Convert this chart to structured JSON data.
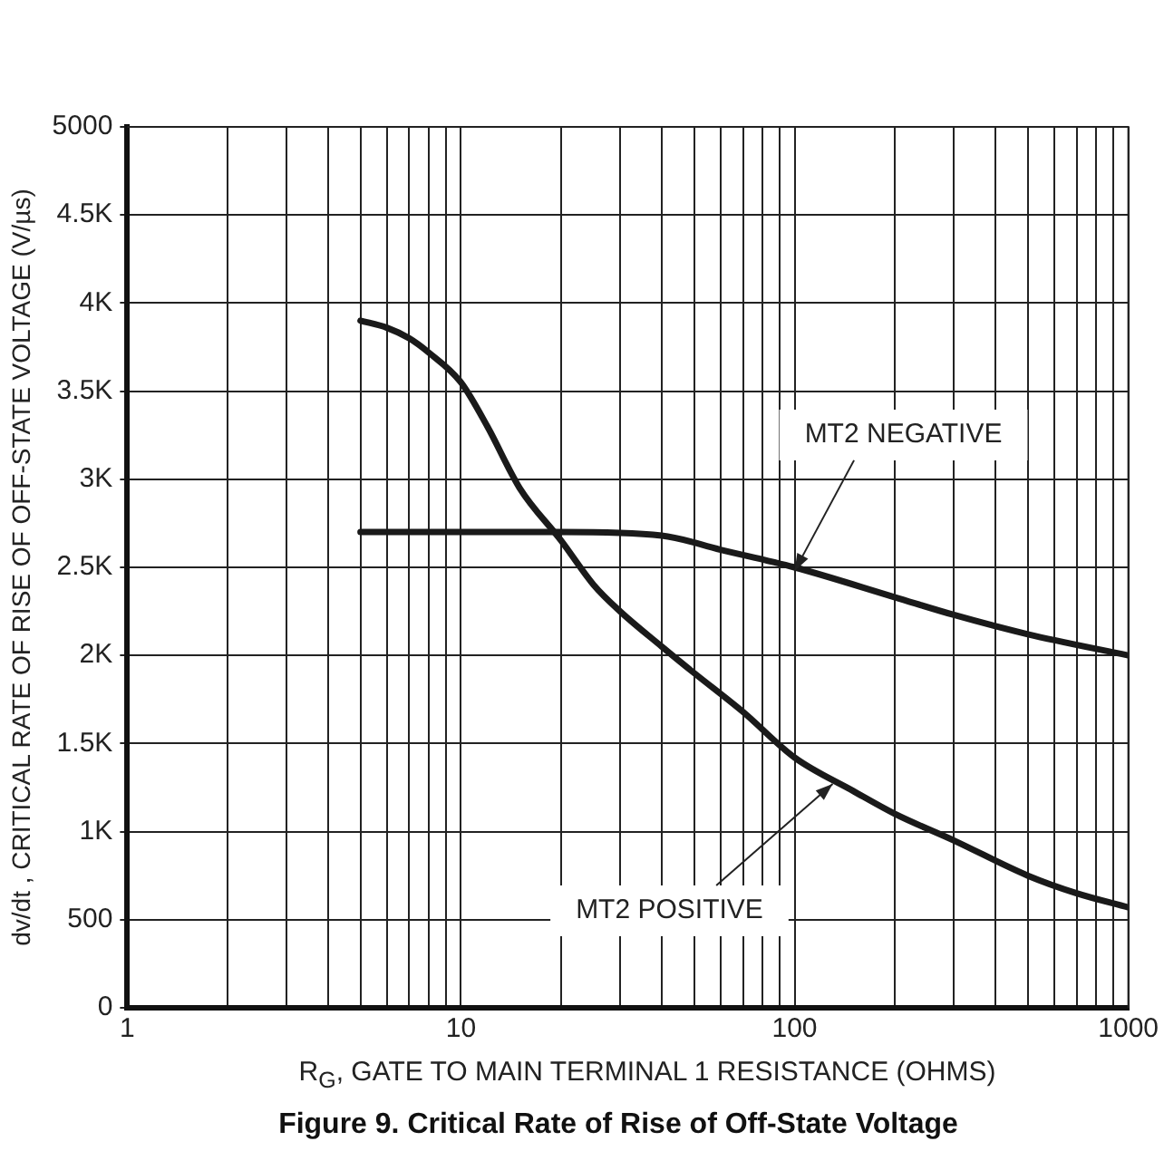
{
  "chart_data": {
    "type": "line",
    "title": "Figure 9. Critical Rate of Rise of Off-State Voltage",
    "xlabel": "R$_{G}$, GATE TO MAIN TERMINAL 1 RESISTANCE (OHMS)",
    "ylabel": "dv/dt , CRITICAL RATE OF RISE OF OFF-STATE VOLTAGE (V/µs)",
    "log": "x",
    "grid": true,
    "legend": false,
    "marker": "none",
    "line_style": "solid",
    "xlim": [
      1,
      1000
    ],
    "ylim": [
      0,
      5000
    ],
    "xticks": [
      1,
      {
        "value": 2,
        "label": null
      },
      {
        "value": 3,
        "label": null
      },
      {
        "value": 4,
        "label": null
      },
      {
        "value": 5,
        "label": null
      },
      {
        "value": 6,
        "label": null
      },
      {
        "value": 7,
        "label": null
      },
      {
        "value": 8,
        "label": null
      },
      {
        "value": 9,
        "label": null
      },
      10,
      {
        "value": 20,
        "label": null
      },
      {
        "value": 30,
        "label": null
      },
      {
        "value": 40,
        "label": null
      },
      {
        "value": 50,
        "label": null
      },
      {
        "value": 60,
        "label": null
      },
      {
        "value": 70,
        "label": null
      },
      {
        "value": 80,
        "label": null
      },
      {
        "value": 90,
        "label": null
      },
      100,
      {
        "value": 200,
        "label": null
      },
      {
        "value": 300,
        "label": null
      },
      {
        "value": 400,
        "label": null
      },
      {
        "value": 500,
        "label": null
      },
      {
        "value": 600,
        "label": null
      },
      {
        "value": 700,
        "label": null
      },
      {
        "value": 800,
        "label": null
      },
      {
        "value": 900,
        "label": null
      },
      1000
    ],
    "yticks": [
      0,
      500,
      {
        "value": 1000,
        "label": "1K"
      },
      {
        "value": 1500,
        "label": "1.5K"
      },
      {
        "value": 2000,
        "label": "2K"
      },
      {
        "value": 2500,
        "label": "2.5K"
      },
      {
        "value": 3000,
        "label": "3K"
      },
      {
        "value": 3500,
        "label": "3.5K"
      },
      {
        "value": 4000,
        "label": "4K"
      },
      {
        "value": 4500,
        "label": "4.5K"
      },
      5000
    ],
    "series": [
      {
        "color": "#1a1a1a",
        "x": [
          5,
          10,
          20,
          40,
          60,
          100,
          200,
          300,
          500,
          1000
        ],
        "values": [
          2700,
          2700,
          2700,
          2680,
          2600,
          2500,
          2330,
          2230,
          2120,
          2000
        ]
      },
      {
        "color": "#1a1a1a",
        "x": [
          5,
          6,
          7,
          8,
          10,
          12,
          15,
          20,
          25,
          30,
          40,
          50,
          70,
          100,
          150,
          200,
          300,
          500,
          700,
          1000
        ],
        "values": [
          3900,
          3860,
          3800,
          3720,
          3550,
          3300,
          2950,
          2650,
          2400,
          2250,
          2050,
          1900,
          1680,
          1420,
          1230,
          1100,
          950,
          750,
          650,
          570
        ]
      }
    ],
    "annotations": [
      {
        "text": "MT2 NEGATIVE",
        "x": 100,
        "y": 2480
      },
      {
        "text": "MT2 POSITIVE",
        "x": 130,
        "y": 1270
      }
    ]
  }
}
